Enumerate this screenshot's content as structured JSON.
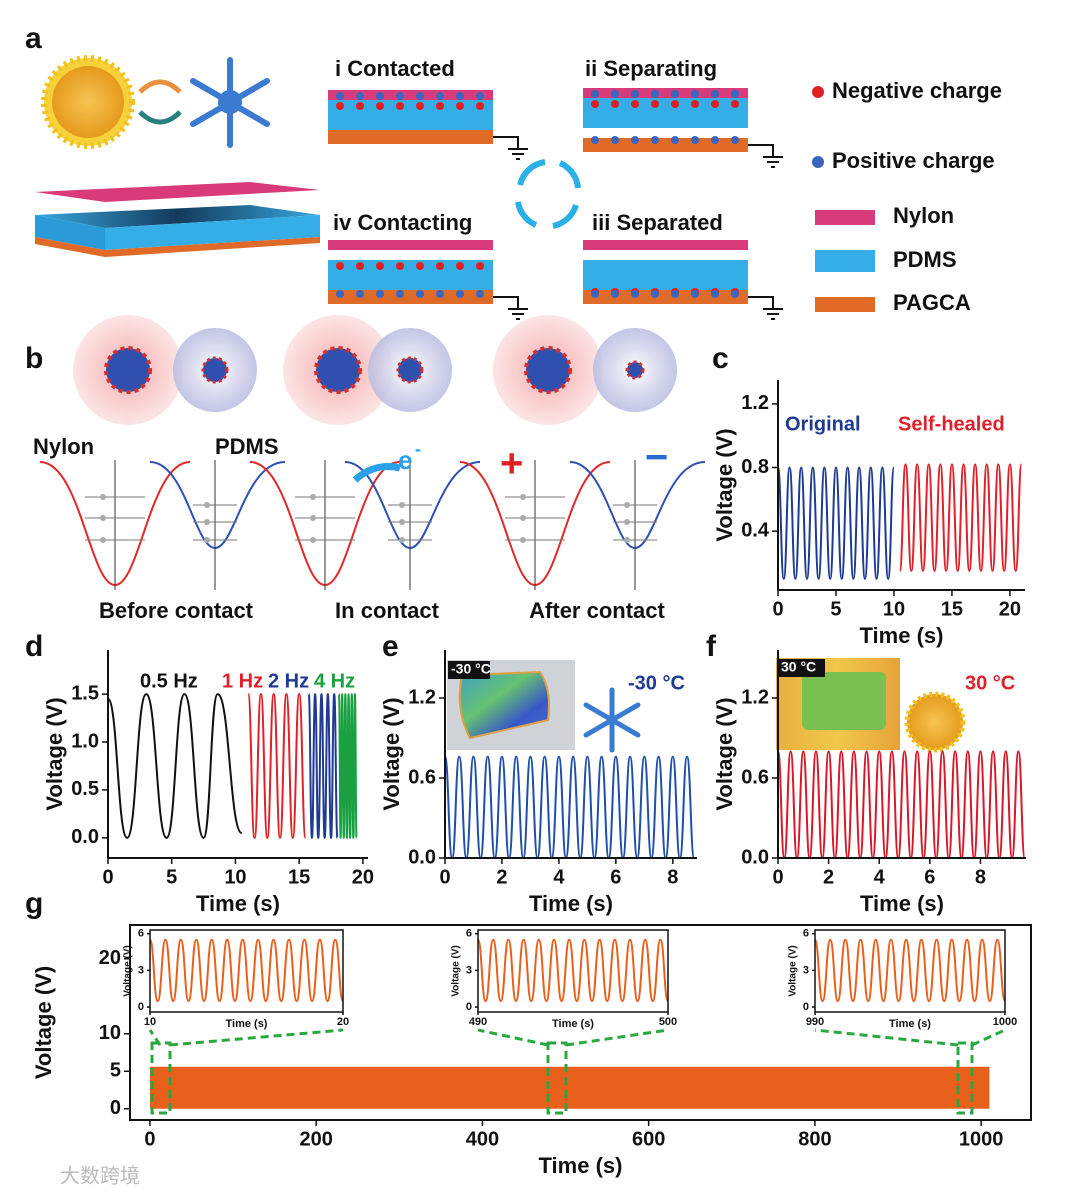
{
  "figure": {
    "panel_labels": [
      "a",
      "b",
      "c",
      "d",
      "e",
      "f",
      "g"
    ],
    "a": {
      "states": [
        "i  Contacted",
        "ii  Separating",
        "iii  Separated",
        "iv  Contacting"
      ],
      "legend": [
        "Negative charge",
        "Positive charge",
        "Nylon",
        "PDMS",
        "PAGCA"
      ]
    },
    "b": {
      "materials": [
        "Nylon",
        "PDMS"
      ],
      "electron": "e",
      "electron_sup": "-",
      "plus": "+",
      "minus": "−",
      "captions": [
        "Before contact",
        "In contact",
        "After contact"
      ]
    },
    "watermark": "大数跨境"
  },
  "chart_data": [
    {
      "type": "line",
      "xlabel": "Time (s)",
      "ylabel": "Voltage (V)",
      "xlim": [
        0,
        21.3
      ],
      "ylim": [
        0.03,
        1.35
      ],
      "xticks": [
        0,
        5,
        10,
        15,
        20
      ],
      "yticks": [
        0.4,
        0.8,
        1.2
      ],
      "series": [
        {
          "name": "Original",
          "color": "#1f3a93",
          "x": [
            0,
            0.5,
            1,
            1.5,
            2,
            2.5,
            3,
            3.5,
            4,
            4.5,
            5,
            5.5,
            6,
            6.5,
            7,
            7.5,
            8,
            8.5,
            9,
            9.5,
            10
          ],
          "values": [
            0.8,
            0.1,
            0.8,
            0.1,
            0.8,
            0.1,
            0.8,
            0.1,
            0.8,
            0.1,
            0.8,
            0.1,
            0.8,
            0.1,
            0.8,
            0.1,
            0.8,
            0.1,
            0.8,
            0.1,
            0.8
          ]
        },
        {
          "name": "Self-healed",
          "color": "#e0202a",
          "x": [
            10.5,
            11,
            11.5,
            12,
            12.5,
            13,
            13.5,
            14,
            14.5,
            15,
            15.5,
            16,
            16.5,
            17,
            17.5,
            18,
            18.5,
            19,
            19.5,
            20,
            20.5,
            21
          ],
          "values": [
            0.15,
            0.82,
            0.15,
            0.82,
            0.15,
            0.82,
            0.15,
            0.82,
            0.15,
            0.82,
            0.15,
            0.82,
            0.15,
            0.82,
            0.15,
            0.82,
            0.15,
            0.82,
            0.15,
            0.82,
            0.15,
            0.82
          ]
        }
      ]
    },
    {
      "type": "line",
      "xlabel": "Time (s)",
      "ylabel": "Voltage (V)",
      "xlim": [
        0,
        20.4
      ],
      "ylim": [
        -0.21,
        1.96
      ],
      "xticks": [
        0,
        5,
        10,
        15,
        20
      ],
      "yticks": [
        {
          "value": 0,
          "label": "0.0"
        },
        0.5,
        {
          "value": 1,
          "label": "1.0"
        },
        1.5
      ],
      "series": [
        {
          "name": "0.5 Hz",
          "color": "#111111",
          "x": [
            0,
            1.5,
            3,
            4.6,
            6,
            7.5,
            8.6,
            10.5
          ],
          "values": [
            1.45,
            0,
            1.5,
            0,
            1.5,
            0,
            1.5,
            0.05
          ]
        },
        {
          "name": "1 Hz",
          "color": "#e0202a",
          "x": [
            11,
            11.5,
            12,
            12.5,
            13,
            13.5,
            14,
            14.5,
            15,
            15.5
          ],
          "values": [
            1.5,
            0,
            1.5,
            0,
            1.5,
            0,
            1.5,
            0,
            1.5,
            0
          ]
        },
        {
          "name": "2 Hz",
          "color": "#1f3a93",
          "x": [
            15.75,
            16,
            16.25,
            16.5,
            16.75,
            17,
            17.25,
            17.5,
            17.75,
            18
          ],
          "values": [
            1.5,
            0,
            1.5,
            0,
            1.5,
            0,
            1.5,
            0,
            1.5,
            0
          ]
        },
        {
          "name": "4 Hz",
          "color": "#1aa040",
          "x": [
            18.125,
            18.25,
            18.375,
            18.5,
            18.625,
            18.75,
            18.875,
            19,
            19.125,
            19.25,
            19.375,
            19.5
          ],
          "values": [
            1.5,
            0,
            1.5,
            0,
            1.5,
            0,
            1.5,
            0,
            1.5,
            0,
            1.5,
            0
          ]
        }
      ]
    },
    {
      "type": "line",
      "xlabel": "Time (s)",
      "ylabel": "Voltage (V)",
      "xlim": [
        0,
        8.85
      ],
      "ylim": [
        0,
        1.56
      ],
      "xticks": [
        0,
        2,
        4,
        6,
        8
      ],
      "yticks": [
        {
          "value": 0,
          "label": "0.0"
        },
        0.6,
        1.2
      ],
      "annotations": [
        "-30 °C",
        "-30 °C"
      ],
      "series": [
        {
          "color": "#1f4fa8",
          "x": [
            0,
            0.25,
            0.5,
            0.75,
            1,
            1.25,
            1.5,
            1.75,
            2,
            2.25,
            2.5,
            2.75,
            3,
            3.25,
            3.5,
            3.75,
            4,
            4.25,
            4.5,
            4.75,
            5,
            5.25,
            5.5,
            5.75,
            6,
            6.25,
            6.5,
            6.75,
            7,
            7.25,
            7.5,
            7.75,
            8,
            8.25,
            8.5,
            8.75
          ],
          "values": [
            0.76,
            0,
            0.76,
            0,
            0.76,
            0,
            0.76,
            0,
            0.76,
            0,
            0.76,
            0,
            0.76,
            0,
            0.76,
            0,
            0.76,
            0,
            0.76,
            0,
            0.76,
            0,
            0.76,
            0,
            0.76,
            0,
            0.76,
            0,
            0.76,
            0,
            0.76,
            0,
            0.76,
            0,
            0.76,
            0
          ]
        }
      ]
    },
    {
      "type": "line",
      "xlabel": "Time (s)",
      "ylabel": "Voltage (V)",
      "xlim": [
        0,
        9.8
      ],
      "ylim": [
        0,
        1.56
      ],
      "xticks": [
        0,
        2,
        4,
        6,
        8
      ],
      "yticks": [
        {
          "value": 0,
          "label": "0.0"
        },
        0.6,
        1.2
      ],
      "annotations": [
        "30 °C",
        "30 °C"
      ],
      "series": [
        {
          "color": "#d8182a",
          "x": [
            0,
            0.25,
            0.5,
            0.75,
            1,
            1.25,
            1.5,
            1.75,
            2,
            2.25,
            2.5,
            2.75,
            3,
            3.25,
            3.5,
            3.75,
            4,
            4.25,
            4.5,
            4.75,
            5,
            5.25,
            5.5,
            5.75,
            6,
            6.25,
            6.5,
            6.75,
            7,
            7.25,
            7.5,
            7.75,
            8,
            8.25,
            8.5,
            8.75,
            9,
            9.25,
            9.5,
            9.75
          ],
          "values": [
            0.8,
            0,
            0.8,
            0,
            0.8,
            0,
            0.8,
            0,
            0.8,
            0,
            0.8,
            0,
            0.8,
            0,
            0.8,
            0,
            0.8,
            0,
            0.8,
            0,
            0.8,
            0,
            0.8,
            0,
            0.8,
            0,
            0.8,
            0,
            0.8,
            0,
            0.8,
            0,
            0.8,
            0,
            0.8,
            0,
            0.8,
            0,
            0.8,
            0
          ]
        }
      ]
    },
    {
      "type": "area",
      "xlabel": "Time (s)",
      "ylabel": "Voltage (V)",
      "xlim": [
        -24,
        1060
      ],
      "ylim": [
        -1.5,
        24.5
      ],
      "xticks": [
        0,
        200,
        400,
        600,
        800,
        1000
      ],
      "yticks": [
        0,
        5,
        10,
        20
      ],
      "series": [
        {
          "color": "#e8601c",
          "x": [
            0,
            1010
          ],
          "values": [
            5.6,
            5.6
          ]
        }
      ]
    },
    {
      "type": "line",
      "xlabel": "Time (s)",
      "ylabel": "Voltage (V)",
      "xlim": [
        10,
        20
      ],
      "ylim": [
        -0.4,
        6.3
      ],
      "xticks": [
        10,
        20
      ],
      "yticks": [
        0,
        3,
        6
      ],
      "series": [
        {
          "color": "#e8601c",
          "x": [
            10,
            10.4,
            10.8,
            11.2,
            11.6,
            12,
            12.4,
            12.8,
            13.2,
            13.6,
            14,
            14.4,
            14.8,
            15.2,
            15.6,
            16,
            16.4,
            16.8,
            17.2,
            17.6,
            18,
            18.4,
            18.8,
            19.2,
            19.6,
            20
          ],
          "values": [
            5.5,
            0.5,
            5.5,
            0.5,
            5.5,
            0.5,
            5.5,
            0.5,
            5.5,
            0.5,
            5.5,
            0.5,
            5.5,
            0.5,
            5.5,
            0.5,
            5.5,
            0.5,
            5.5,
            0.5,
            5.5,
            0.5,
            5.5,
            0.5,
            5.5,
            0.5
          ]
        }
      ]
    },
    {
      "type": "line",
      "xlabel": "Time (s)",
      "ylabel": "Voltage (V)",
      "xlim": [
        490,
        500
      ],
      "ylim": [
        -0.4,
        6.3
      ],
      "xticks": [
        490,
        500
      ],
      "yticks": [
        0,
        3,
        6
      ],
      "series": [
        {
          "color": "#e8601c",
          "x": [
            490,
            490.4,
            490.8,
            491.2,
            491.6,
            492,
            492.4,
            492.8,
            493.2,
            493.6,
            494,
            494.4,
            494.8,
            495.2,
            495.6,
            496,
            496.4,
            496.8,
            497.2,
            497.6,
            498,
            498.4,
            498.8,
            499.2,
            499.6,
            500
          ],
          "values": [
            5.5,
            0.5,
            5.5,
            0.5,
            5.5,
            0.5,
            5.5,
            0.5,
            5.5,
            0.5,
            5.5,
            0.5,
            5.5,
            0.5,
            5.5,
            0.5,
            5.5,
            0.5,
            5.5,
            0.5,
            5.5,
            0.5,
            5.5,
            0.5,
            5.5,
            0.5
          ]
        }
      ]
    },
    {
      "type": "line",
      "xlabel": "Time (s)",
      "ylabel": "Voltage (V)",
      "xlim": [
        990,
        1000
      ],
      "ylim": [
        -0.4,
        6.3
      ],
      "xticks": [
        990,
        1000
      ],
      "yticks": [
        0,
        3,
        6
      ],
      "series": [
        {
          "color": "#e8601c",
          "x": [
            990,
            990.4,
            990.8,
            991.2,
            991.6,
            992,
            992.4,
            992.8,
            993.2,
            993.6,
            994,
            994.4,
            994.8,
            995.2,
            995.6,
            996,
            996.4,
            996.8,
            997.2,
            997.6,
            998,
            998.4,
            998.8,
            999.2,
            999.6,
            1000
          ],
          "values": [
            5.5,
            0.5,
            5.5,
            0.5,
            5.5,
            0.5,
            5.5,
            0.5,
            5.5,
            0.5,
            5.5,
            0.5,
            5.5,
            0.5,
            5.5,
            0.5,
            5.5,
            0.5,
            5.5,
            0.5,
            5.5,
            0.5,
            5.5,
            0.5,
            5.5,
            0.5
          ]
        }
      ]
    }
  ]
}
